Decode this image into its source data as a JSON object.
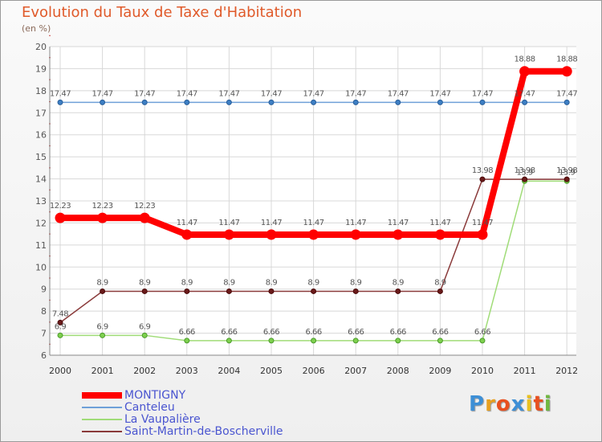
{
  "chart_data": {
    "type": "line",
    "title": "Evolution du Taux de Taxe d'Habitation",
    "subtitle": "(en %)",
    "xlabel": "",
    "ylabel": "(en %)",
    "x": [
      "2000",
      "2001",
      "2002",
      "2003",
      "2004",
      "2005",
      "2006",
      "2007",
      "2008",
      "2009",
      "2010",
      "2011",
      "2012"
    ],
    "ylim": [
      6,
      20
    ],
    "yticks": [
      "6",
      "7",
      "8",
      "9",
      "10",
      "11",
      "12",
      "13",
      "14",
      "15",
      "16",
      "17",
      "18",
      "19",
      "20"
    ],
    "grid": true,
    "legend_position": "bottom-left",
    "series": [
      {
        "name": "MONTIGNY",
        "color": "#ff0000",
        "values": [
          12.23,
          12.23,
          12.23,
          11.47,
          11.47,
          11.47,
          11.47,
          11.47,
          11.47,
          11.47,
          11.47,
          18.88,
          18.88
        ],
        "labels": [
          "12.23",
          "12.23",
          "12.23",
          "11.47",
          "11.47",
          "11.47",
          "11.47",
          "11.47",
          "11.47",
          "11.47",
          "11.47",
          "18.88",
          "18.88"
        ]
      },
      {
        "name": "Canteleu",
        "color": "#6fa0d8",
        "values": [
          17.47,
          17.47,
          17.47,
          17.47,
          17.47,
          17.47,
          17.47,
          17.47,
          17.47,
          17.47,
          17.47,
          17.47,
          17.47
        ],
        "labels": [
          "17.47",
          "17.47",
          "17.47",
          "17.47",
          "17.47",
          "17.47",
          "17.47",
          "17.47",
          "17.47",
          "17.47",
          "17.47",
          "17.47",
          "17.47"
        ]
      },
      {
        "name": "La Vaupalière",
        "color": "#a0dc78",
        "values": [
          6.9,
          6.9,
          6.9,
          6.66,
          6.66,
          6.66,
          6.66,
          6.66,
          6.66,
          6.66,
          6.66,
          13.9,
          13.9
        ],
        "labels": [
          "6.9",
          "6.9",
          "6.9",
          "6.66",
          "6.66",
          "6.66",
          "6.66",
          "6.66",
          "6.66",
          "6.66",
          "6.66",
          "13.9",
          "13.9"
        ]
      },
      {
        "name": "Saint-Martin-de-Boscherville",
        "color": "#8a3a3a",
        "values": [
          7.48,
          8.9,
          8.9,
          8.9,
          8.9,
          8.9,
          8.9,
          8.9,
          8.9,
          8.9,
          13.98,
          13.98,
          13.98
        ],
        "labels": [
          "7.48",
          "8.9",
          "8.9",
          "8.9",
          "8.9",
          "8.9",
          "8.9",
          "8.9",
          "8.9",
          "8.9",
          "13.98",
          "13.98",
          "13.98"
        ]
      }
    ]
  },
  "logo": {
    "letters": [
      "P",
      "r",
      "o",
      "x",
      "i",
      "t",
      "i"
    ],
    "colors": [
      "#3d8fd6",
      "#e8a020",
      "#e85020",
      "#3d8fd6",
      "#e8c020",
      "#e85020",
      "#70b840"
    ]
  }
}
